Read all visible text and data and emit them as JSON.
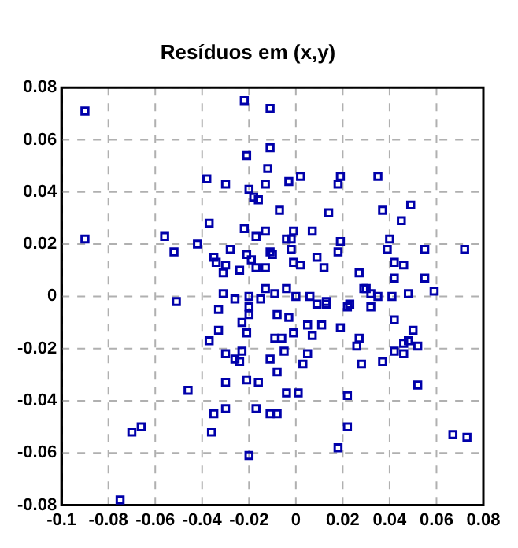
{
  "chart_data": {
    "type": "scatter",
    "title": "Resíduos em (x,y)",
    "xlim": [
      -0.1,
      0.08
    ],
    "ylim": [
      -0.08,
      0.08
    ],
    "xticks": [
      -0.1,
      -0.08,
      -0.06,
      -0.04,
      -0.02,
      0,
      0.02,
      0.04,
      0.06,
      0.08
    ],
    "yticks": [
      -0.08,
      -0.06,
      -0.04,
      -0.02,
      0,
      0.02,
      0.04,
      0.06,
      0.08
    ],
    "grid": true,
    "marker": "square",
    "series": [
      {
        "color": "#0000aa",
        "x": [
          -0.09,
          -0.09,
          -0.022,
          -0.011,
          -0.011,
          -0.021,
          -0.012,
          -0.038,
          -0.03,
          -0.02,
          -0.013,
          -0.018,
          -0.016,
          -0.003,
          0.002,
          0.019,
          0.018,
          0.035,
          0.049,
          0.037,
          -0.007,
          0.014,
          0.045,
          -0.001,
          0.007,
          -0.013,
          -0.004,
          -0.002,
          0.019,
          0.04,
          0.039,
          0.055,
          0.072,
          -0.011,
          -0.01,
          -0.002,
          0.018,
          -0.013,
          -0.001,
          0.002,
          0.009,
          0.012,
          0.042,
          0.046,
          0.027,
          0.042,
          0.055,
          -0.013,
          -0.009,
          -0.004,
          0,
          0.006,
          0.013,
          0.029,
          0.03,
          0.032,
          0.035,
          0.041,
          0.048,
          0.059,
          -0.056,
          -0.052,
          -0.042,
          -0.037,
          -0.022,
          -0.017,
          -0.028,
          -0.035,
          -0.034,
          -0.03,
          -0.031,
          -0.024,
          -0.021,
          -0.019,
          -0.017,
          -0.031,
          -0.026,
          -0.02,
          -0.051,
          -0.015,
          -0.02,
          -0.033,
          -0.02,
          -0.023,
          -0.033,
          -0.021,
          -0.037,
          -0.03,
          -0.026,
          -0.024,
          -0.023,
          -0.011,
          -0.03,
          -0.021,
          -0.016,
          -0.046,
          -0.035,
          -0.03,
          -0.017,
          -0.011,
          -0.07,
          -0.066,
          -0.036,
          -0.02,
          -0.075,
          0.009,
          0.013,
          0.022,
          0.023,
          0.032,
          -0.008,
          -0.003,
          0.005,
          0.011,
          -0.001,
          0.007,
          0.019,
          0.042,
          0.05,
          -0.009,
          -0.006,
          0.027,
          0.026,
          0.046,
          0.048,
          0.052,
          0.042,
          0.046,
          -0.005,
          0.005,
          0.003,
          0.028,
          0.037,
          -0.008,
          0.052,
          -0.004,
          0.001,
          0.022,
          -0.008,
          0.022,
          0.018,
          0.067,
          0.073
        ],
        "values": [
          0.071,
          0.022,
          0.075,
          0.072,
          0.057,
          0.054,
          0.049,
          0.045,
          0.043,
          0.041,
          0.043,
          0.038,
          0.037,
          0.044,
          0.046,
          0.046,
          0.043,
          0.046,
          0.035,
          0.033,
          0.033,
          0.032,
          0.029,
          0.025,
          0.025,
          0.025,
          0.022,
          0.022,
          0.021,
          0.022,
          0.018,
          0.018,
          0.018,
          0.017,
          0.016,
          0.018,
          0.017,
          0.011,
          0.013,
          0.012,
          0.015,
          0.011,
          0.013,
          0.012,
          0.009,
          0.007,
          0.007,
          0.003,
          0.001,
          0.003,
          0,
          0,
          -0.002,
          0.003,
          0.003,
          0.001,
          0,
          0,
          0.001,
          0.002,
          0.023,
          0.017,
          0.02,
          0.028,
          0.026,
          0.023,
          0.018,
          0.015,
          0.013,
          0.012,
          0.009,
          0.01,
          0.016,
          0.014,
          0.011,
          0.001,
          -0.001,
          0,
          -0.002,
          -0.001,
          -0.004,
          -0.005,
          -0.007,
          -0.01,
          -0.013,
          -0.014,
          -0.017,
          -0.022,
          -0.024,
          -0.025,
          -0.021,
          -0.024,
          -0.033,
          -0.032,
          -0.033,
          -0.036,
          -0.045,
          -0.043,
          -0.043,
          -0.045,
          -0.052,
          -0.05,
          -0.052,
          -0.061,
          -0.078,
          -0.003,
          -0.003,
          -0.004,
          -0.003,
          -0.004,
          -0.007,
          -0.008,
          -0.011,
          -0.011,
          -0.014,
          -0.015,
          -0.012,
          -0.009,
          -0.013,
          -0.016,
          -0.016,
          -0.016,
          -0.019,
          -0.018,
          -0.017,
          -0.019,
          -0.021,
          -0.022,
          -0.021,
          -0.022,
          -0.026,
          -0.026,
          -0.025,
          -0.029,
          -0.034,
          -0.037,
          -0.037,
          -0.038,
          -0.045,
          -0.05,
          -0.058,
          -0.053,
          -0.054
        ]
      }
    ]
  }
}
